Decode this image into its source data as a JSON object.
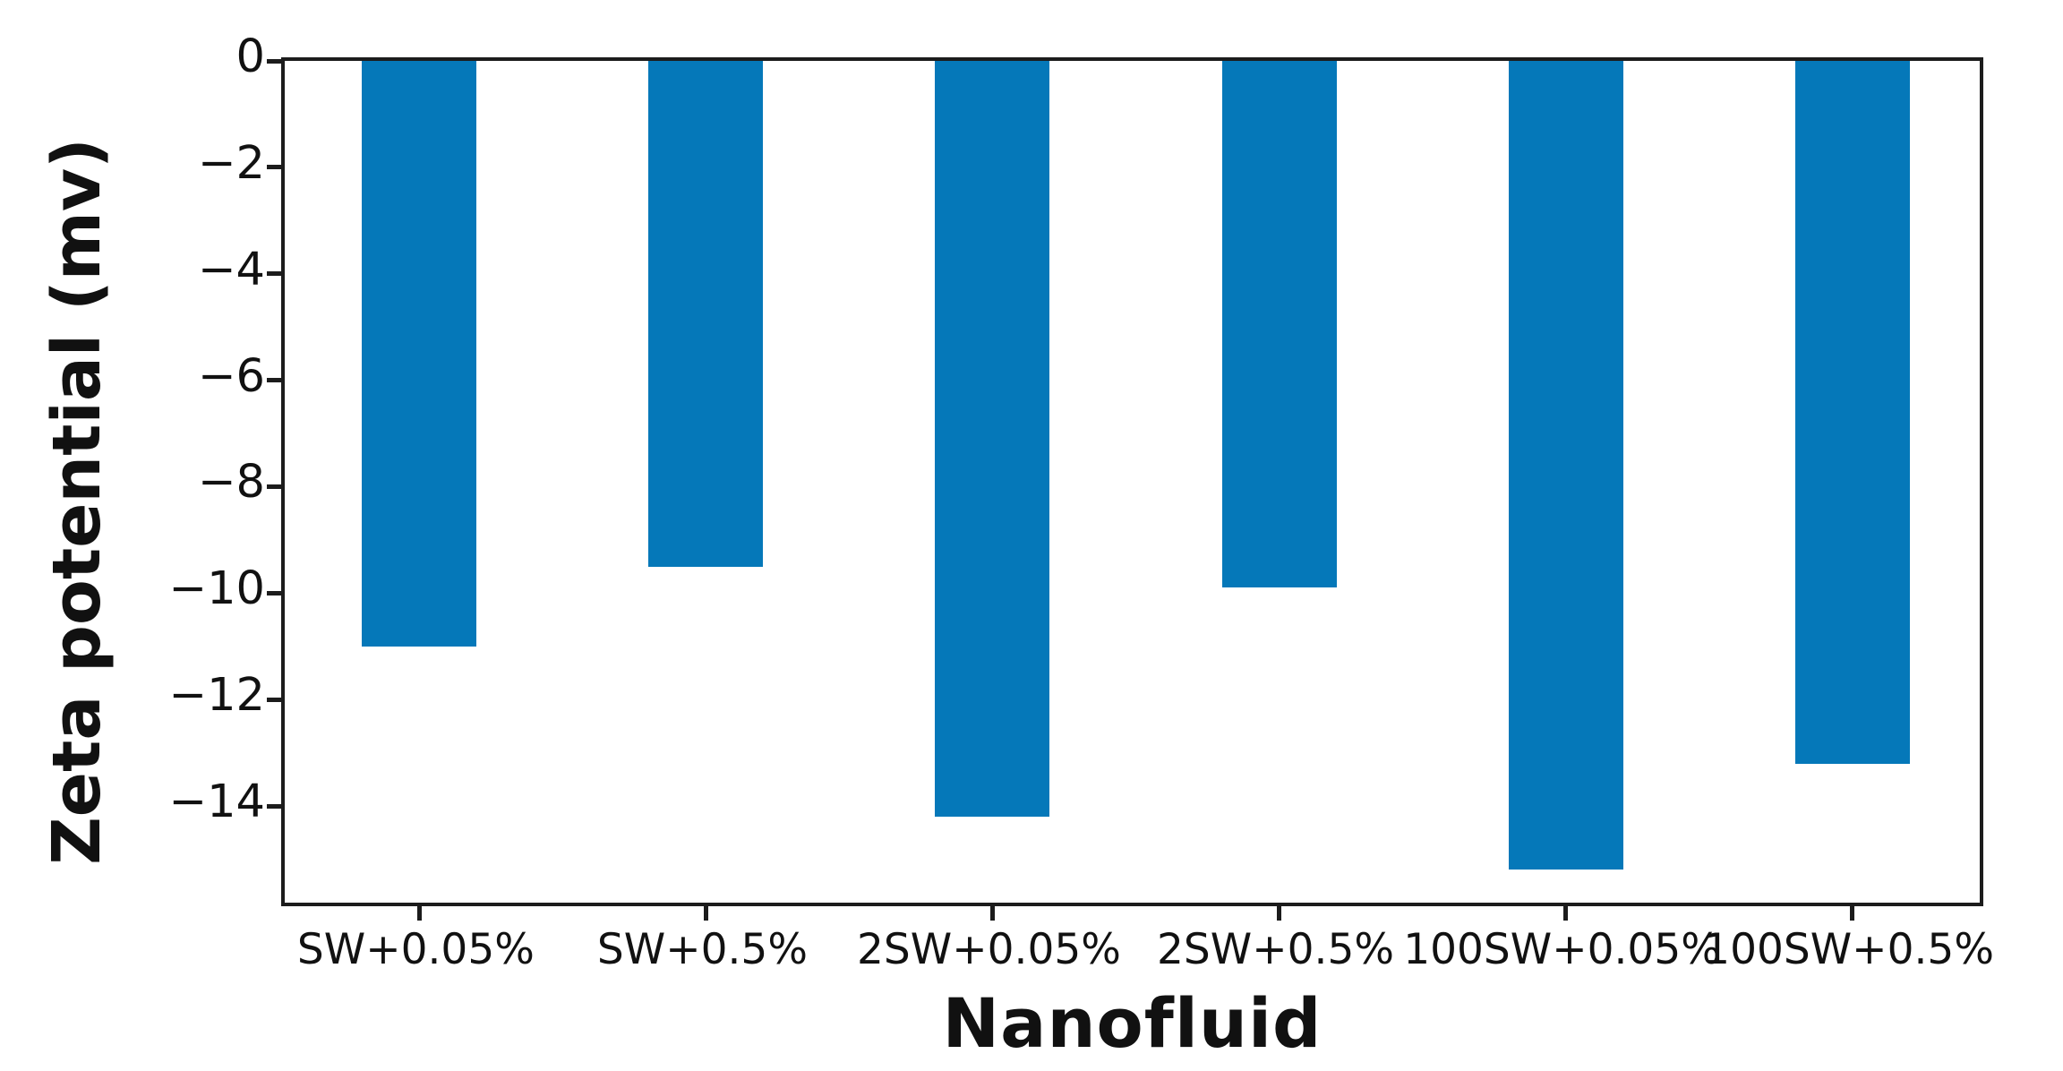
{
  "figure": {
    "background": "#ffffff",
    "axis_color": "#1c1c1c",
    "text_color": "#111111"
  },
  "chart_data": {
    "type": "bar",
    "categories": [
      "SW+0.05%",
      "SW+0.5%",
      "2SW+0.05%",
      "2SW+0.5%",
      "100SW+0.05%",
      "100SW+0.5%"
    ],
    "values": [
      -11.0,
      -9.5,
      -14.2,
      -9.9,
      -15.2,
      -13.2
    ],
    "xlabel": "Nanofluid",
    "ylabel": "Zeta potential (mv)",
    "ylim": [
      -15.95,
      0
    ],
    "xlim": [
      -0.47,
      5.47
    ],
    "yticks": [
      0,
      -2,
      -4,
      -6,
      -8,
      -10,
      -12,
      -14
    ],
    "ytick_labels": [
      "0",
      "−2",
      "−4",
      "−6",
      "−8",
      "−10",
      "−12",
      "−14"
    ],
    "bar_color": "#0578b9",
    "bar_width_fraction": 0.4,
    "grid": false,
    "legend": false
  }
}
